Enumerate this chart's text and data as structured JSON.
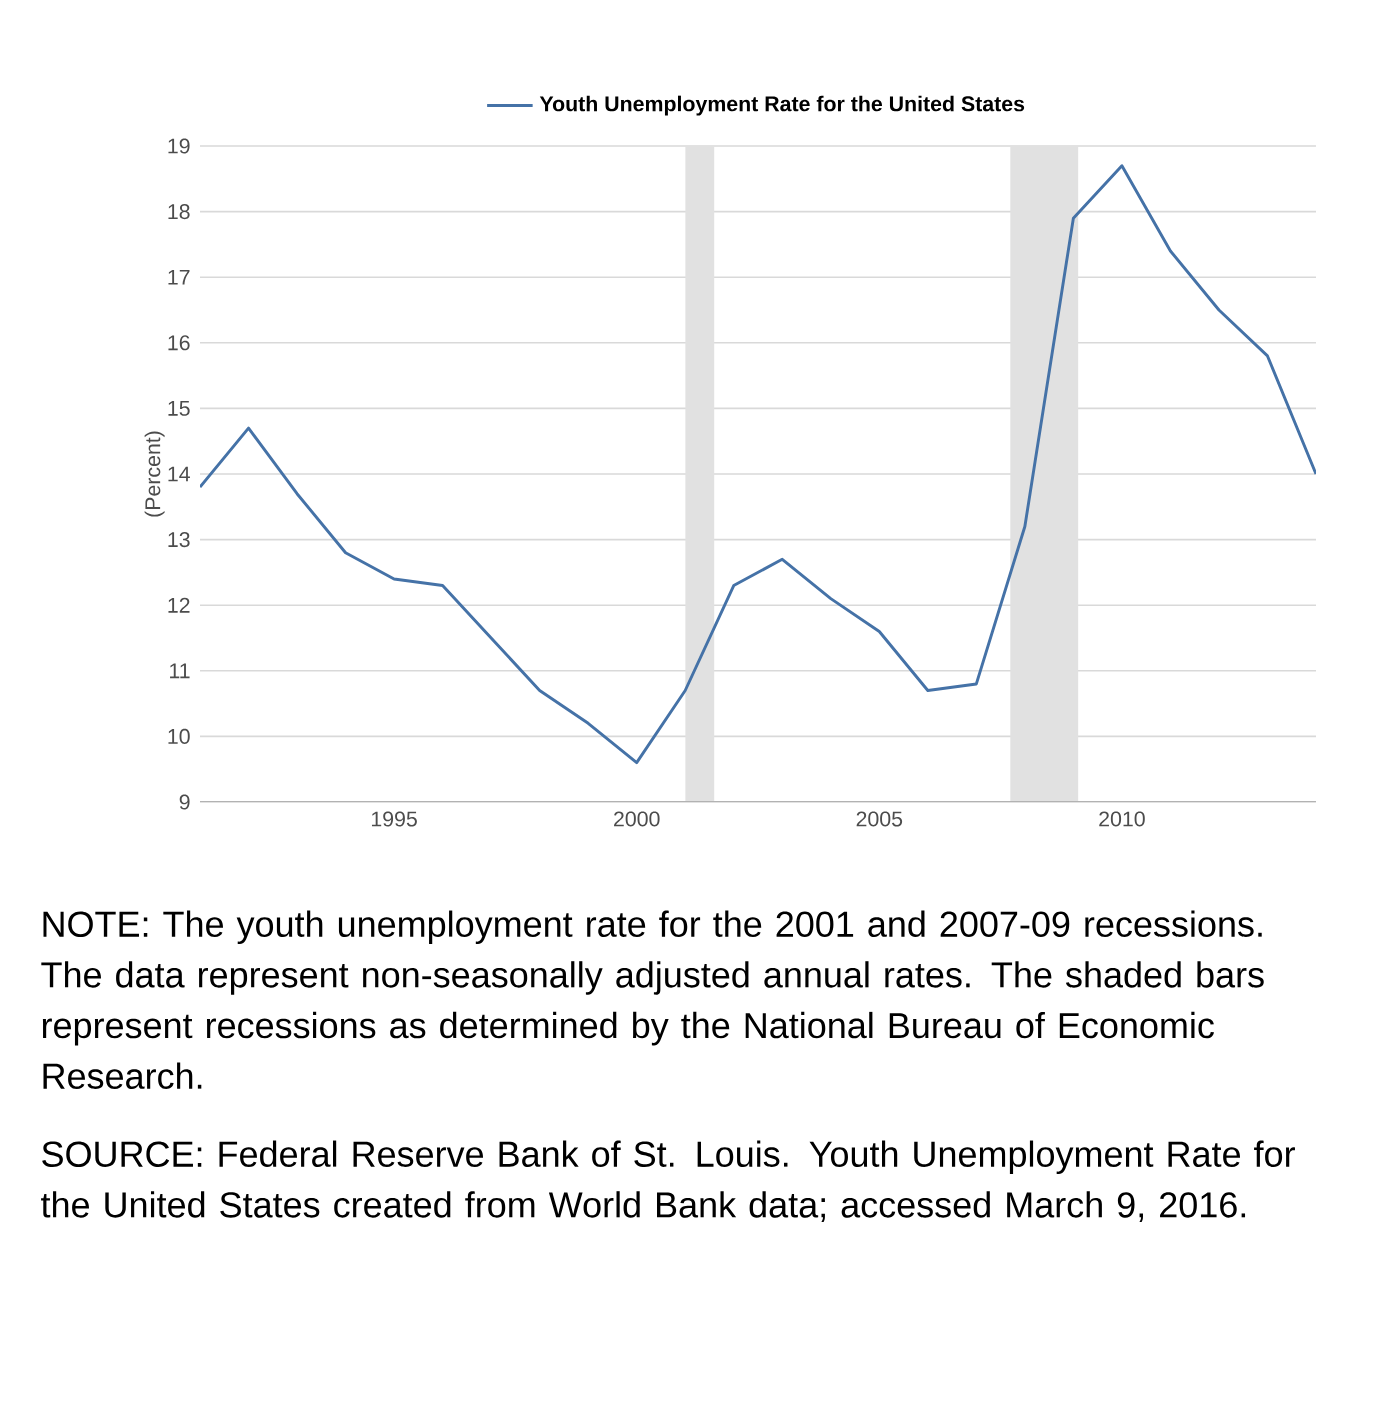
{
  "chart_data": {
    "type": "line",
    "ylabel": "(Percent)",
    "x": [
      1991,
      1992,
      1993,
      1994,
      1995,
      1996,
      1997,
      1998,
      1999,
      2000,
      2001,
      2002,
      2003,
      2004,
      2005,
      2006,
      2007,
      2008,
      2009,
      2010,
      2011,
      2012,
      2013,
      2014
    ],
    "series": [
      {
        "name": "Youth Unemployment Rate for the United States",
        "color": "#4572a7",
        "values": [
          13.8,
          14.7,
          13.7,
          12.8,
          12.4,
          12.3,
          11.5,
          10.7,
          10.2,
          9.6,
          10.7,
          12.3,
          12.7,
          12.1,
          11.6,
          10.7,
          10.8,
          13.2,
          17.9,
          18.7,
          17.4,
          16.5,
          15.8,
          14.0
        ]
      }
    ],
    "xlim": [
      1991,
      2014
    ],
    "xticks": [
      1995,
      2000,
      2005,
      2010
    ],
    "ylim": [
      9,
      19
    ],
    "yticks": [
      9,
      10,
      11,
      12,
      13,
      14,
      15,
      16,
      17,
      18,
      19
    ],
    "bands": [
      {
        "axis": "x",
        "from": 2001.0,
        "to": 2001.6,
        "color": "#e1e1e1"
      },
      {
        "axis": "x",
        "from": 2007.7,
        "to": 2009.1,
        "color": "#e1e1e1"
      }
    ],
    "grid": "y",
    "legend": "top",
    "marker": "none",
    "line_style": "solid",
    "annotations": [
      "NOTE: The youth unemployment rate for the 2001 and 2007-09 recessions. The data represent non-seasonally adjusted annual rates. The shaded bars represent recessions as determined by the National Bureau of Economic Research.",
      "SOURCE: Federal Reserve Bank of St. Louis. Youth Unemployment Rate for the United States created from World Bank data; accessed March 9, 2016."
    ]
  }
}
